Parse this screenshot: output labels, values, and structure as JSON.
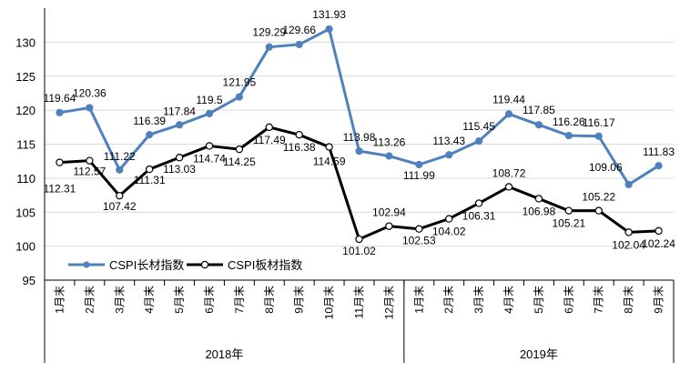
{
  "chart_data": {
    "type": "line",
    "categories": [
      "1月末",
      "2月末",
      "3月末",
      "4月末",
      "5月末",
      "6月末",
      "7月末",
      "8月末",
      "9月末",
      "10月末",
      "11月末",
      "12月末",
      "1月末",
      "2月末",
      "3月末",
      "4月末",
      "5月末",
      "6月末",
      "7月末",
      "8月末",
      "9月末"
    ],
    "year_groups": [
      {
        "label": "2018年",
        "count": 12
      },
      {
        "label": "2019年",
        "count": 9
      }
    ],
    "series": [
      {
        "name": "CSPI长材指数",
        "color": "#4F81BD",
        "marker": "filled-circle",
        "values": [
          119.64,
          120.36,
          111.22,
          116.39,
          117.84,
          119.5,
          121.95,
          129.29,
          129.66,
          131.93,
          113.98,
          113.26,
          111.99,
          113.43,
          115.45,
          119.44,
          117.85,
          116.26,
          116.17,
          109.06,
          111.83
        ],
        "labels": [
          "119.64",
          "120.36",
          "111.22",
          "116.39",
          "117.84",
          "119.5",
          "121.95",
          "129.29",
          "129.66",
          "131.93",
          "113.98",
          "113.26",
          "111.99",
          "113.43",
          "115.45",
          "119.44",
          "117.85",
          "116.26",
          "116.17",
          "109.06",
          "111.83"
        ]
      },
      {
        "name": "CSPI板材指数",
        "color": "#000000",
        "marker": "hollow-circle",
        "values": [
          112.31,
          112.57,
          107.42,
          111.31,
          113.03,
          114.74,
          114.25,
          117.49,
          116.38,
          114.59,
          101.02,
          102.94,
          102.53,
          104.02,
          106.31,
          108.72,
          106.98,
          105.21,
          105.22,
          102.04,
          102.24
        ],
        "labels": [
          "112.31",
          "112.57",
          "107.42",
          "111.31",
          "113.03",
          "114.74",
          "114.25",
          "117.49",
          "116.38",
          "114.59",
          "101.02",
          "102.94",
          "102.53",
          "104.02",
          "106.31",
          "108.72",
          "106.98",
          "105.21",
          "105.22",
          "102.04",
          "102.24"
        ]
      }
    ],
    "yticks": [
      "95",
      "100",
      "105",
      "110",
      "115",
      "120",
      "125",
      "130"
    ],
    "ylim": [
      95,
      135
    ],
    "grid": "horizontal",
    "legend_position": "bottom-left"
  }
}
